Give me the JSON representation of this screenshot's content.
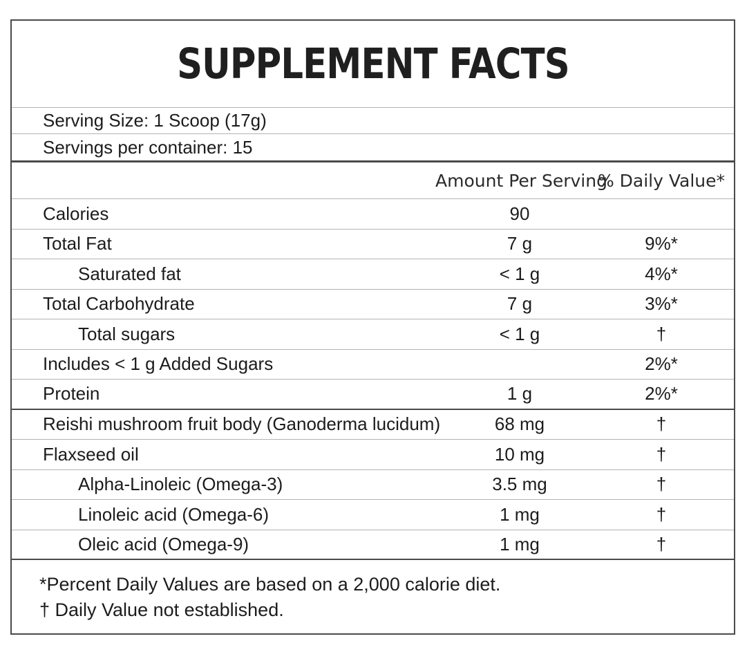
{
  "panel": {
    "title": "SUPPLEMENT FACTS",
    "serving_info": [
      {
        "label": "Serving Size: 1 Scoop (17g)"
      },
      {
        "label": "Servings per container: 15"
      }
    ],
    "columns": {
      "amount": "Amount Per Serving",
      "dv": "% Daily Value*"
    },
    "rows": [
      {
        "name": "Calories",
        "amount": "90",
        "dv": "",
        "indent": false,
        "thick_after": false
      },
      {
        "name": "Total Fat",
        "amount": "7 g",
        "dv": "9%*",
        "indent": false,
        "thick_after": false
      },
      {
        "name": "Saturated fat",
        "amount": "< 1 g",
        "dv": "4%*",
        "indent": true,
        "thick_after": false
      },
      {
        "name": "Total Carbohydrate",
        "amount": "7 g",
        "dv": "3%*",
        "indent": false,
        "thick_after": false
      },
      {
        "name": "Total sugars",
        "amount": "< 1 g",
        "dv": "†",
        "indent": true,
        "thick_after": false
      },
      {
        "name": "Includes < 1 g Added Sugars",
        "amount": "",
        "dv": "2%*",
        "indent": false,
        "thick_after": false
      },
      {
        "name": "Protein",
        "amount": "1 g",
        "dv": "2%*",
        "indent": false,
        "thick_after": true
      },
      {
        "name": "Reishi mushroom fruit body (Ganoderma lucidum)",
        "amount": "68 mg",
        "dv": "†",
        "indent": false,
        "thick_after": false
      },
      {
        "name": "Flaxseed oil",
        "amount": "10 mg",
        "dv": "†",
        "indent": false,
        "thick_after": false
      },
      {
        "name": "Alpha-Linoleic (Omega-3)",
        "amount": "3.5 mg",
        "dv": "†",
        "indent": true,
        "thick_after": false
      },
      {
        "name": "Linoleic acid (Omega-6)",
        "amount": "1 mg",
        "dv": "†",
        "indent": true,
        "thick_after": false
      },
      {
        "name": "Oleic acid (Omega-9)",
        "amount": "1 mg",
        "dv": "†",
        "indent": true,
        "thick_after": true
      }
    ],
    "footnotes": [
      "*Percent Daily Values are based on a 2,000 calorie diet.",
      "† Daily Value not established."
    ],
    "colors": {
      "text": "#1c1c1c",
      "border_dark": "#4a4a4a",
      "border_light": "#b3b3b3",
      "background": "#ffffff"
    }
  }
}
